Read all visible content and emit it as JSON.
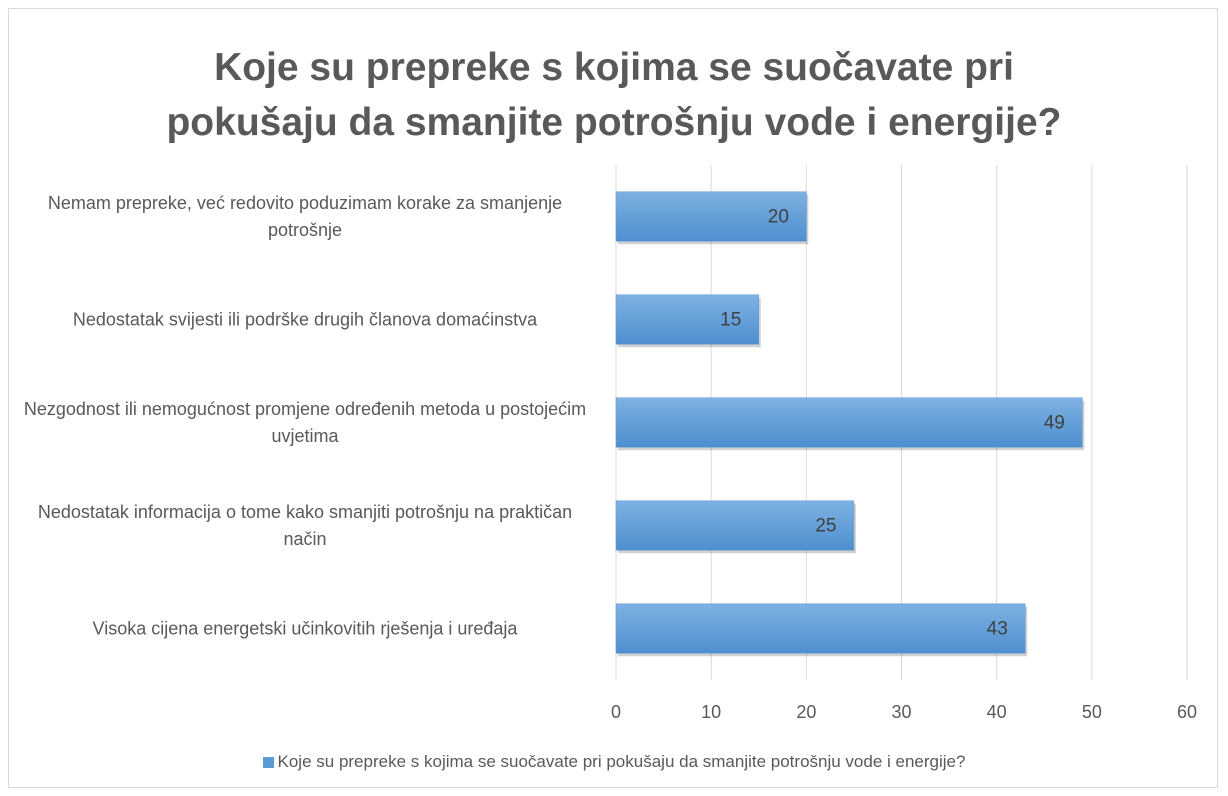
{
  "chart_data": {
    "type": "hbar",
    "title": "Koje su prepreke s kojima se suočavate pri pokušaju da smanjite potrošnju vode i energije?",
    "categories": [
      "Nemam prepreke, već redovito poduzimam korake za smanjenje potrošnje",
      "Nedostatak svijesti ili podrške drugih članova domaćinstva",
      "Nezgodnost ili nemogućnost promjene određenih metoda u postojećim uvjetima",
      "Nedostatak informacija o tome kako smanjiti potrošnju na praktičan način",
      "Visoka cijena energetski učinkovitih rješenja i uređaja"
    ],
    "series": [
      {
        "name": "Koje su prepreke s kojima se suočavate pri pokušaju da smanjite potrošnju vode i energije?",
        "color": "#5b9bd5",
        "values": [
          20,
          15,
          49,
          25,
          43
        ]
      }
    ],
    "xlim": [
      0,
      60
    ],
    "xticks": [
      0,
      10,
      20,
      30,
      40,
      50,
      60
    ],
    "grid": true,
    "legend": "bottom"
  }
}
